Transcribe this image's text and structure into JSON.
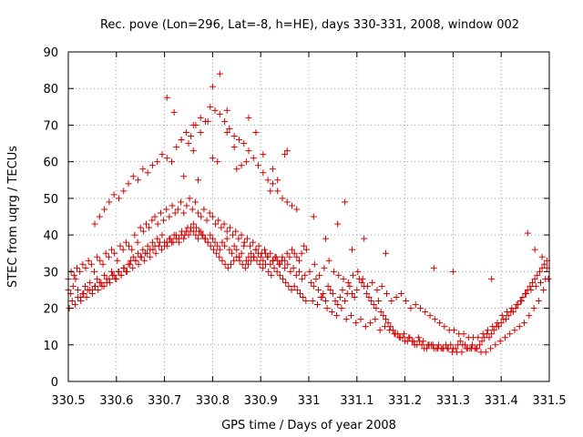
{
  "chart_data": {
    "type": "scatter",
    "title": "Rec. pove (Lon=296, Lat=-8, h=HE), days 330-331, 2008, window 002",
    "xlabel": "GPS time / Days of year 2008",
    "ylabel": "STEC from uqrg / TECUs",
    "xlim": [
      330.5,
      331.5
    ],
    "ylim": [
      0,
      90
    ],
    "grid": true,
    "marker": "plus",
    "color": "#d40000",
    "x_ticks": [
      "330.5",
      "330.6",
      "330.7",
      "330.8",
      "330.9",
      "331",
      "331.1",
      "331.2",
      "331.3",
      "331.4",
      "331.5"
    ],
    "y_ticks": [
      "0",
      "10",
      "20",
      "30",
      "40",
      "50",
      "60",
      "70",
      "80",
      "90"
    ],
    "series": [
      {
        "name": "",
        "x": [
          330.5,
          330.505,
          330.51,
          330.515,
          330.52,
          330.525,
          330.53,
          330.535,
          330.54,
          330.545,
          330.55,
          330.555,
          330.56,
          330.565,
          330.57,
          330.575,
          330.58,
          330.585,
          330.59,
          330.595,
          330.6,
          330.605,
          330.61,
          330.615,
          330.62,
          330.625,
          330.63,
          330.635,
          330.64,
          330.645,
          330.65,
          330.655,
          330.66,
          330.665,
          330.67,
          330.675,
          330.68,
          330.685,
          330.69,
          330.695,
          330.7,
          330.705,
          330.71,
          330.715,
          330.72,
          330.725,
          330.73,
          330.735,
          330.74,
          330.745,
          330.75,
          330.755,
          330.76,
          330.765,
          330.77,
          330.775,
          330.78,
          330.785,
          330.79,
          330.795,
          330.8,
          330.805,
          330.81,
          330.815,
          330.82,
          330.825,
          330.83,
          330.835,
          330.84,
          330.845,
          330.85,
          330.855,
          330.86,
          330.865,
          330.87,
          330.875,
          330.88,
          330.885,
          330.89,
          330.895,
          330.9,
          330.905,
          330.91,
          330.915,
          330.92,
          330.925,
          330.93,
          330.935,
          330.94,
          330.945,
          330.95,
          330.955,
          330.96,
          330.965,
          330.97,
          330.975,
          330.98,
          330.985,
          330.99,
          330.995,
          330.5,
          330.506,
          330.512,
          330.518,
          330.524,
          330.53,
          330.536,
          330.542,
          330.548,
          330.554,
          330.56,
          330.566,
          330.572,
          330.578,
          330.584,
          330.59,
          330.596,
          330.602,
          330.608,
          330.614,
          330.62,
          330.626,
          330.632,
          330.638,
          330.644,
          330.65,
          330.656,
          330.662,
          330.668,
          330.674,
          330.68,
          330.686,
          330.692,
          330.698,
          330.704,
          330.71,
          330.716,
          330.722,
          330.728,
          330.734,
          330.74,
          330.746,
          330.752,
          330.758,
          330.764,
          330.77,
          330.776,
          330.782,
          330.788,
          330.794,
          330.8,
          330.806,
          330.812,
          330.818,
          330.824,
          330.83,
          330.836,
          330.842,
          330.848,
          330.854,
          330.86,
          330.866,
          330.872,
          330.878,
          330.884,
          330.89,
          330.896,
          330.902,
          330.908,
          330.914,
          330.92,
          330.926,
          330.932,
          330.938,
          330.944,
          330.95,
          330.956,
          330.962,
          330.968,
          330.974,
          330.98,
          330.986,
          330.992,
          330.502,
          330.508,
          330.514,
          330.52,
          330.526,
          330.532,
          330.538,
          330.544,
          330.55,
          330.556,
          330.562,
          330.568,
          330.574,
          330.58,
          330.586,
          330.592,
          330.598,
          330.604,
          330.61,
          330.616,
          330.622,
          330.628,
          330.634,
          330.64,
          330.646,
          330.652,
          330.658,
          330.664,
          330.67,
          330.676,
          330.682,
          330.688,
          330.694,
          330.7,
          330.706,
          330.712,
          330.718,
          330.724,
          330.73,
          330.736,
          330.742,
          330.748,
          330.754,
          330.76,
          330.766,
          330.772,
          330.778,
          330.784,
          330.79,
          330.796,
          330.802,
          330.808,
          330.814,
          330.82,
          330.826,
          330.832,
          330.838,
          330.844,
          330.85,
          330.856,
          330.862,
          330.868,
          330.874,
          330.88,
          330.886,
          330.892,
          330.898,
          330.904,
          330.91,
          330.916,
          330.922,
          330.928,
          330.934,
          330.94,
          330.946,
          330.952,
          330.958,
          330.964,
          330.97,
          330.976,
          330.982,
          330.988,
          330.994,
          330.555,
          330.565,
          330.575,
          330.585,
          330.595,
          330.605,
          330.615,
          330.625,
          330.635,
          330.645,
          330.655,
          330.665,
          330.675,
          330.685,
          330.695,
          330.705,
          330.715,
          330.725,
          330.735,
          330.745,
          330.755,
          330.765,
          330.775,
          330.785,
          330.795,
          330.805,
          330.815,
          330.825,
          330.835,
          330.845,
          330.855,
          330.865,
          330.875,
          330.885,
          330.895,
          330.905,
          330.915,
          330.925,
          330.935,
          330.945,
          330.955,
          330.965,
          330.975,
          330.705,
          330.72,
          330.735,
          330.75,
          330.76,
          330.775,
          330.79,
          330.8,
          330.815,
          330.83,
          330.845,
          330.86,
          330.875,
          330.89,
          330.905,
          330.925,
          330.8,
          330.81,
          330.76,
          330.74,
          330.77,
          330.85,
          330.87,
          330.83,
          330.955,
          330.95,
          330.935,
          330.92,
          331.005,
          331.01,
          331.015,
          331.02,
          331.025,
          331.03,
          331.035,
          331.04,
          331.045,
          331.05,
          331.055,
          331.06,
          331.065,
          331.07,
          331.075,
          331.08,
          331.085,
          331.09,
          331.095,
          331.1,
          331.105,
          331.11,
          331.115,
          331.12,
          331.125,
          331.13,
          331.135,
          331.14,
          331.145,
          331.15,
          331.155,
          331.16,
          331.165,
          331.17,
          331.175,
          331.18,
          331.185,
          331.19,
          331.195,
          331.2,
          331.205,
          331.21,
          331.215,
          331.22,
          331.225,
          331.23,
          331.235,
          331.24,
          331.245,
          331.25,
          331.255,
          331.26,
          331.265,
          331.27,
          331.275,
          331.28,
          331.285,
          331.29,
          331.295,
          331.3,
          331.305,
          331.31,
          331.315,
          331.32,
          331.325,
          331.33,
          331.335,
          331.34,
          331.345,
          331.35,
          331.355,
          331.36,
          331.365,
          331.37,
          331.375,
          331.38,
          331.385,
          331.39,
          331.395,
          331.4,
          331.405,
          331.41,
          331.415,
          331.42,
          331.425,
          331.43,
          331.435,
          331.44,
          331.445,
          331.45,
          331.455,
          331.46,
          331.465,
          331.47,
          331.475,
          331.48,
          331.485,
          331.49,
          331.495,
          331.002,
          331.012,
          331.022,
          331.032,
          331.042,
          331.052,
          331.062,
          331.072,
          331.082,
          331.092,
          331.102,
          331.112,
          331.122,
          331.132,
          331.142,
          331.152,
          331.162,
          331.172,
          331.182,
          331.192,
          331.202,
          331.212,
          331.222,
          331.232,
          331.242,
          331.252,
          331.262,
          331.272,
          331.282,
          331.292,
          331.302,
          331.312,
          331.322,
          331.332,
          331.342,
          331.352,
          331.362,
          331.372,
          331.382,
          331.392,
          331.402,
          331.412,
          331.422,
          331.432,
          331.442,
          331.452,
          331.462,
          331.472,
          331.482,
          331.492,
          331.008,
          331.018,
          331.028,
          331.038,
          331.048,
          331.058,
          331.068,
          331.078,
          331.088,
          331.098,
          331.108,
          331.118,
          331.128,
          331.138,
          331.148,
          331.158,
          331.168,
          331.178,
          331.188,
          331.198,
          331.208,
          331.218,
          331.228,
          331.238,
          331.248,
          331.258,
          331.268,
          331.278,
          331.288,
          331.298,
          331.308,
          331.318,
          331.328,
          331.338,
          331.348,
          331.358,
          331.368,
          331.378,
          331.388,
          331.398,
          331.408,
          331.418,
          331.428,
          331.438,
          331.448,
          331.458,
          331.468,
          331.478,
          331.488,
          331.498,
          331.01,
          331.06,
          331.075,
          331.115,
          331.035,
          331.09,
          331.16,
          331.26,
          331.3,
          331.38,
          331.455,
          331.47,
          331.485,
          331.495
        ],
        "y": [
          25,
          24,
          26,
          28,
          25,
          23,
          24,
          26,
          25,
          27,
          25,
          26,
          28,
          27,
          26,
          29,
          27,
          28,
          30,
          29,
          28,
          30,
          29,
          31,
          30,
          32,
          33,
          34,
          33,
          35,
          34,
          36,
          35,
          37,
          36,
          38,
          37,
          39,
          38,
          40,
          37,
          38,
          39,
          38,
          40,
          39,
          38,
          40,
          39,
          41,
          40,
          42,
          41,
          40,
          39,
          41,
          40,
          39,
          38,
          40,
          39,
          38,
          37,
          36,
          38,
          37,
          39,
          36,
          35,
          37,
          36,
          34,
          35,
          37,
          33,
          34,
          35,
          34,
          36,
          35,
          34,
          33,
          35,
          34,
          32,
          33,
          34,
          33,
          32,
          34,
          33,
          35,
          34,
          36,
          35,
          34,
          33,
          35,
          37,
          36,
          28,
          30,
          29,
          31,
          30,
          32,
          31,
          33,
          32,
          30,
          34,
          33,
          32,
          35,
          34,
          36,
          35,
          33,
          37,
          36,
          38,
          37,
          36,
          40,
          38,
          42,
          41,
          43,
          42,
          44,
          45,
          43,
          46,
          44,
          47,
          45,
          48,
          46,
          47,
          49,
          46,
          48,
          50,
          47,
          49,
          46,
          45,
          47,
          44,
          46,
          45,
          43,
          44,
          42,
          43,
          41,
          42,
          40,
          41,
          39,
          40,
          38,
          39,
          37,
          38,
          36,
          37,
          35,
          36,
          34,
          35,
          33,
          34,
          32,
          33,
          31,
          32,
          30,
          31,
          29,
          30,
          28,
          29,
          20,
          22,
          21,
          23,
          22,
          24,
          23,
          25,
          24,
          26,
          25,
          27,
          26,
          28,
          27,
          29,
          28,
          30,
          29,
          31,
          30,
          32,
          31,
          33,
          32,
          34,
          33,
          35,
          34,
          36,
          35,
          37,
          36,
          38,
          37,
          39,
          38,
          40,
          39,
          41,
          40,
          42,
          41,
          43,
          42,
          41,
          40,
          39,
          38,
          37,
          36,
          35,
          34,
          33,
          32,
          31,
          32,
          33,
          34,
          33,
          32,
          31,
          32,
          33,
          34,
          33,
          32,
          31,
          32,
          30,
          29,
          31,
          30,
          29,
          28,
          27,
          26,
          25,
          26,
          25,
          24,
          23,
          22,
          43,
          45,
          47,
          49,
          51,
          50,
          52,
          54,
          56,
          55,
          58,
          57,
          59,
          60,
          62,
          61,
          60,
          64,
          66,
          68,
          67,
          70,
          72,
          71,
          75,
          74,
          73,
          71,
          69,
          67,
          66,
          65,
          63,
          61,
          59,
          57,
          55,
          54,
          52,
          50,
          49,
          48,
          47,
          77.5,
          73.5,
          66,
          65,
          70,
          68,
          71,
          80.5,
          84,
          74,
          64,
          59,
          72,
          68,
          62,
          58,
          61,
          60,
          63,
          56,
          55,
          58,
          60,
          68,
          63,
          62,
          55,
          52,
          27,
          26,
          28,
          25,
          23,
          24,
          22,
          26,
          25,
          24,
          22,
          21,
          23,
          25,
          22,
          24,
          26,
          24,
          23,
          25,
          28,
          27,
          26,
          24,
          23,
          22,
          21,
          20,
          22,
          19,
          18,
          17,
          16,
          15,
          14,
          13,
          13,
          12,
          12,
          11,
          11,
          12,
          11,
          10,
          10,
          11,
          10,
          9,
          9,
          10,
          10,
          9,
          9,
          10,
          9,
          9,
          10,
          9,
          10,
          9,
          9,
          10,
          11,
          10,
          10,
          9,
          9,
          10,
          9,
          9,
          10,
          11,
          12,
          13,
          12,
          13,
          14,
          15,
          15,
          16,
          17,
          17,
          18,
          19,
          19,
          20,
          21,
          22,
          23,
          24,
          25,
          26,
          27,
          28,
          29,
          30,
          31,
          32,
          33,
          30,
          32,
          29,
          31,
          33,
          30,
          29,
          28,
          27,
          29,
          30,
          28,
          26,
          27,
          25,
          26,
          24,
          22,
          23,
          24,
          22,
          20,
          21,
          20,
          19,
          18,
          17,
          16,
          15,
          14,
          14,
          13,
          13,
          12,
          12,
          12,
          13,
          14,
          15,
          16,
          18,
          19,
          20,
          21,
          22,
          24,
          25,
          26,
          27,
          28,
          22,
          21,
          23,
          20,
          19,
          18,
          20,
          17,
          18,
          16,
          17,
          15,
          16,
          17,
          14,
          15,
          14,
          13,
          12,
          13,
          12,
          11,
          12,
          11,
          10,
          10,
          9,
          9,
          9,
          8,
          8,
          8,
          9,
          9,
          9,
          8,
          8,
          9,
          10,
          11,
          12,
          13,
          14,
          15,
          16,
          18,
          20,
          22,
          25,
          28,
          45,
          43,
          49,
          39,
          39,
          36,
          35,
          31,
          30,
          28,
          40.5,
          36,
          34,
          31
        ]
      }
    ]
  }
}
